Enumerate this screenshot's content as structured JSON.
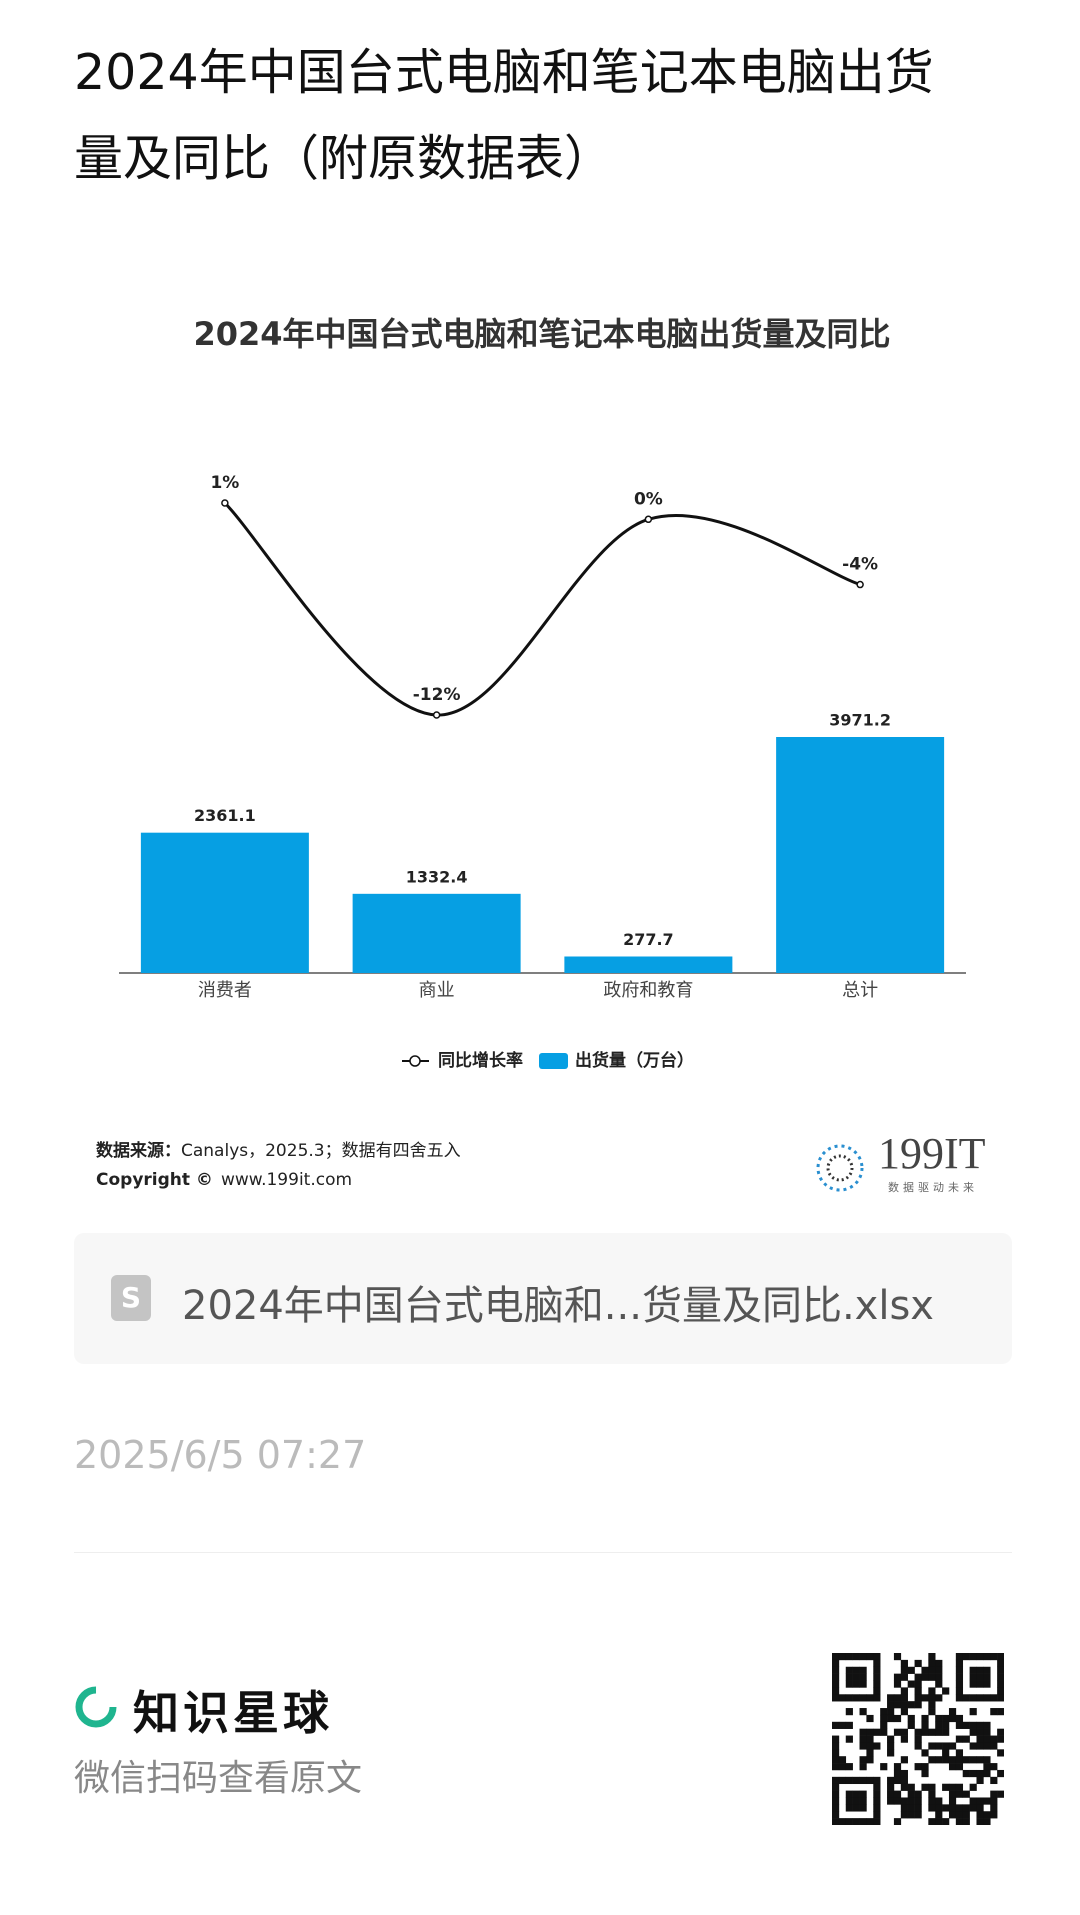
{
  "header": {
    "title": "2024年中国台式电脑和笔记本电脑出货量及同比（附原数据表）"
  },
  "chart_data": {
    "type": "bar",
    "title": "2024年中国台式电脑和笔记本电脑出货量及同比",
    "categories": [
      "消费者",
      "商业",
      "政府和教育",
      "总计"
    ],
    "series": [
      {
        "name": "同比增长率",
        "type": "line",
        "color": "#111111",
        "values": [
          1,
          -12,
          0,
          -4
        ],
        "value_labels": [
          "1%",
          "-12%",
          "0%",
          "-4%"
        ]
      },
      {
        "name": "出货量（万台）",
        "type": "bar",
        "color": "#069fe3",
        "values": [
          2361.1,
          1332.4,
          277.7,
          3971.2
        ]
      }
    ],
    "source_label": "数据来源：",
    "source": "Canalys，2025.3；数据有四舍五入",
    "copyright_label": "Copyright ©",
    "copyright": "www.199it.com",
    "logo": "199IT",
    "logo_tagline": "数据驱动未来"
  },
  "file": {
    "name": "2024年中国台式电脑和...货量及同比.xlsx"
  },
  "timestamp": "2025/6/5 07:27",
  "footer": {
    "brand": "知识星球",
    "hint": "微信扫码查看原文"
  }
}
